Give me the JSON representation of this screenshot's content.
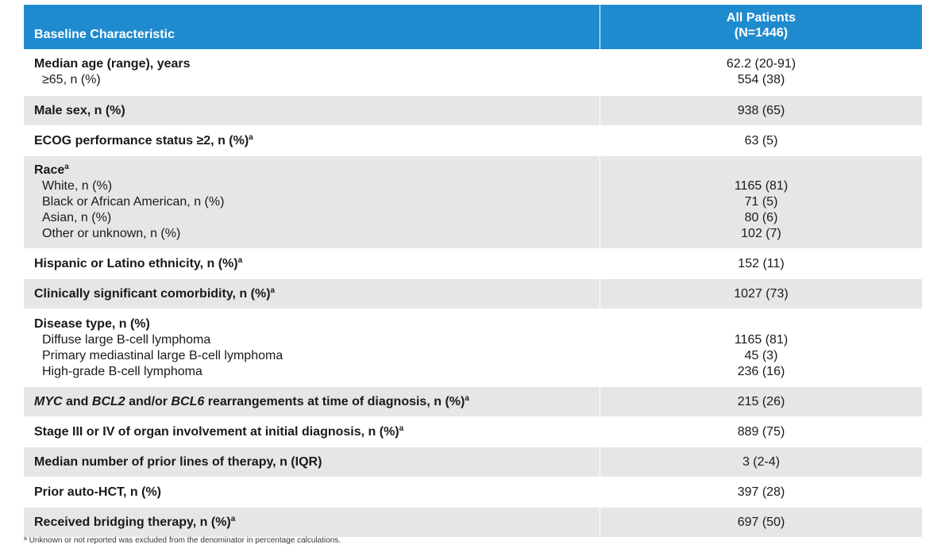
{
  "header": {
    "col1": "Baseline Characteristic",
    "col2_line1": "All Patients",
    "col2_line2": "(N=1446)"
  },
  "rows": [
    {
      "label": "Median age (range), years",
      "value": "62.2 (20-91)",
      "sub": [
        {
          "label": "≥65, n (%)",
          "value": "554 (38)"
        }
      ]
    },
    {
      "label": "Male sex, n (%)",
      "value": "938 (65)"
    },
    {
      "label": "ECOG performance status ≥2, n (%)",
      "sup": "a",
      "value": "63 (5)"
    },
    {
      "label": "Race",
      "sup": "a",
      "sub": [
        {
          "label": "White, n (%)",
          "value": "1165 (81)"
        },
        {
          "label": "Black or African American, n (%)",
          "value": "71 (5)"
        },
        {
          "label": "Asian, n (%)",
          "value": "80 (6)"
        },
        {
          "label": "Other or unknown, n (%)",
          "value": "102 (7)"
        }
      ]
    },
    {
      "label": "Hispanic or Latino ethnicity, n (%)",
      "sup": "a",
      "value": "152 (11)"
    },
    {
      "label": "Clinically significant comorbidity, n (%)",
      "sup": "a",
      "value": "1027 (73)"
    },
    {
      "label": "Disease type, n (%)",
      "sub": [
        {
          "label": "Diffuse large B-cell lymphoma",
          "value": "1165 (81)"
        },
        {
          "label": "Primary mediastinal large B-cell lymphoma",
          "value": "45 (3)"
        },
        {
          "label": "High-grade B-cell lymphoma",
          "value": "236 (16)"
        }
      ]
    },
    {
      "label_parts": [
        {
          "text": "MYC",
          "italic": true
        },
        {
          "text": " and "
        },
        {
          "text": "BCL2",
          "italic": true
        },
        {
          "text": " and/or "
        },
        {
          "text": "BCL6",
          "italic": true
        },
        {
          "text": " rearrangements at time of diagnosis, n (%)"
        }
      ],
      "sup": "a",
      "value": "215 (26)"
    },
    {
      "label": "Stage III or IV of organ involvement at initial diagnosis, n (%)",
      "sup": "a",
      "value": "889 (75)"
    },
    {
      "label": "Median number of prior lines of therapy, n (IQR)",
      "value": "3 (2-4)"
    },
    {
      "label": "Prior auto-HCT, n (%)",
      "value": "397 (28)"
    },
    {
      "label": "Received bridging therapy, n (%)",
      "sup": "a",
      "value": "697 (50)"
    }
  ],
  "footnote": {
    "marker": "a",
    "text": " Unknown or not reported was excluded from the denominator in percentage calculations."
  }
}
